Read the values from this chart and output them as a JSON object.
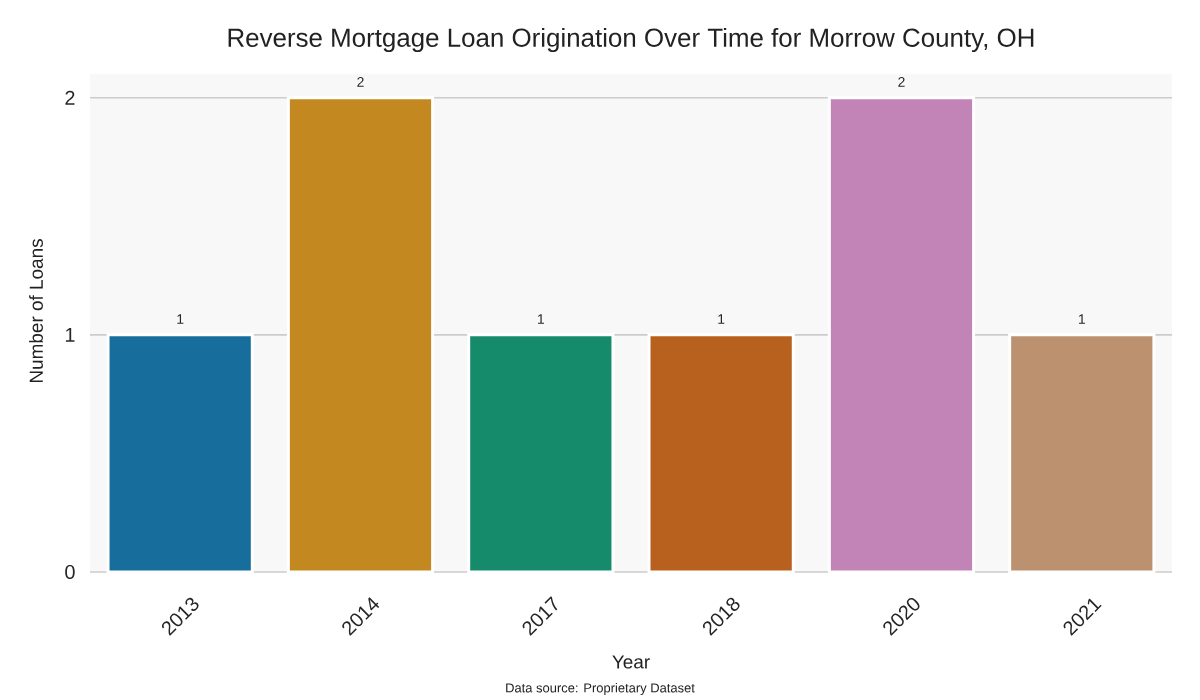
{
  "chart_data": {
    "type": "bar",
    "title": "Reverse Mortgage Loan Origination Over Time for Morrow County, OH",
    "xlabel": "Year",
    "ylabel": "Number of Loans",
    "categories": [
      "2013",
      "2014",
      "2017",
      "2018",
      "2020",
      "2021"
    ],
    "values": [
      1,
      2,
      1,
      1,
      2,
      1
    ],
    "colors": [
      "#176d9c",
      "#c38820",
      "#168b6b",
      "#b8601e",
      "#c283b6",
      "#bc9170"
    ],
    "ylim": [
      0,
      2.1
    ],
    "yticks": [
      0,
      1,
      2
    ],
    "grid": "y",
    "data_labels": true,
    "annotations": [
      "Data source: Proprietary Dataset"
    ]
  }
}
